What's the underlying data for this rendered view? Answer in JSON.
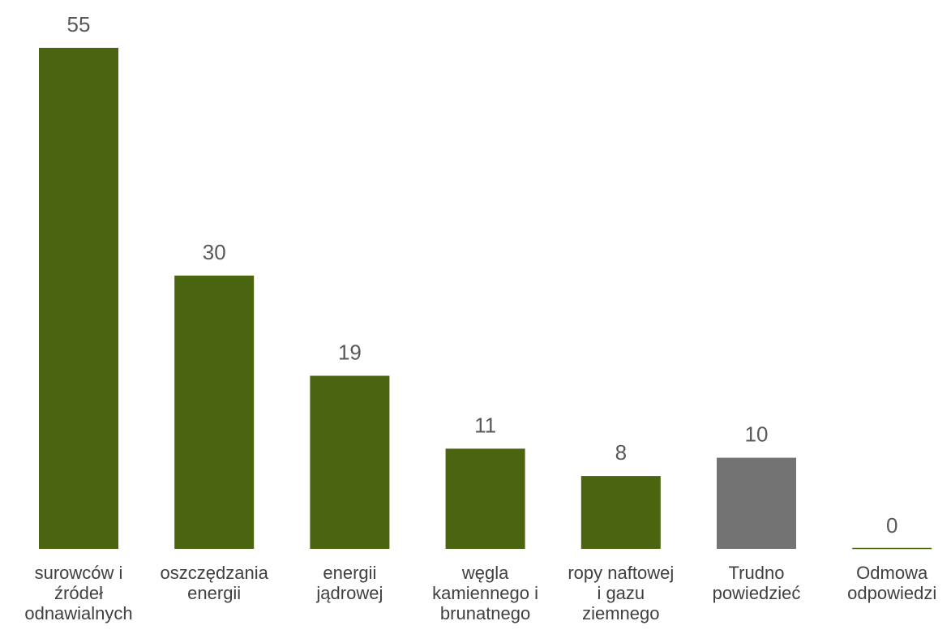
{
  "chart_data": {
    "type": "bar",
    "title": "",
    "xlabel": "",
    "ylabel": "",
    "ylim": [
      0,
      55
    ],
    "grid": false,
    "legend": "none",
    "categories": [
      "surowców i\nźródeł\nodnawialnych",
      "oszczędzania\nenergii",
      "energii\njądrowej",
      "węgla\nkamiennego i\nbrunatnego",
      "ropy naftowej\ni gazu\nziemnego",
      "Trudno\npowiedzieć",
      "Odmowa\nodpowiedzi"
    ],
    "values": [
      55,
      30,
      19,
      11,
      8,
      10,
      0
    ],
    "bar_colors": [
      "#4a6410",
      "#4a6410",
      "#4a6410",
      "#4a6410",
      "#4a6410",
      "#737373",
      "#4a6410"
    ],
    "value_label_color": "#595959",
    "category_label_color": "#404040"
  }
}
